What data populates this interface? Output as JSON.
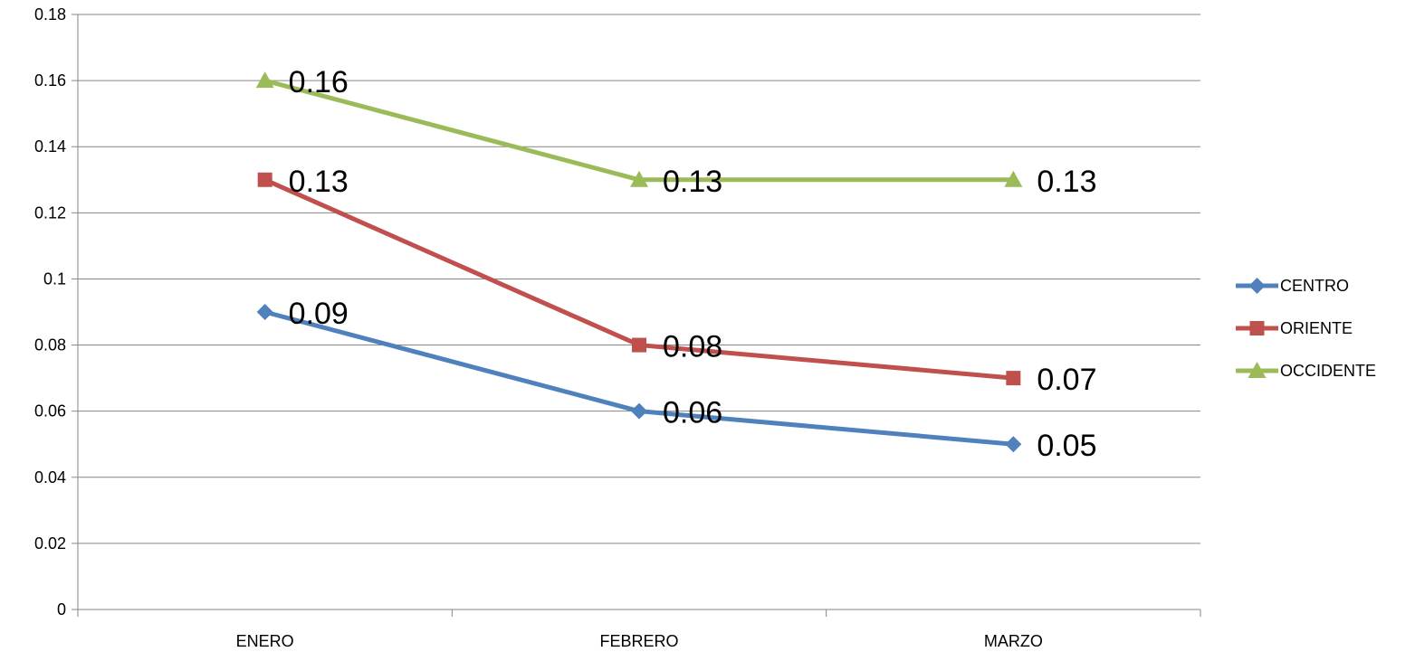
{
  "chart_data": {
    "type": "line",
    "categories": [
      "ENERO",
      "FEBRERO",
      "MARZO"
    ],
    "series": [
      {
        "name": "CENTRO",
        "values": [
          0.09,
          0.06,
          0.05
        ],
        "color": "#4f81bd",
        "marker": "diamond"
      },
      {
        "name": "ORIENTE",
        "values": [
          0.13,
          0.08,
          0.07
        ],
        "color": "#c0504d",
        "marker": "square"
      },
      {
        "name": "OCCIDENTE",
        "values": [
          0.16,
          0.13,
          0.13
        ],
        "color": "#9bbb59",
        "marker": "triangle"
      }
    ],
    "y_ticks": [
      "0",
      "0.02",
      "0.04",
      "0.06",
      "0.08",
      "0.1",
      "0.12",
      "0.14",
      "0.16",
      "0.18"
    ],
    "ylim": [
      0,
      0.18
    ],
    "grid": true,
    "legend_position": "right",
    "data_labels": true
  }
}
